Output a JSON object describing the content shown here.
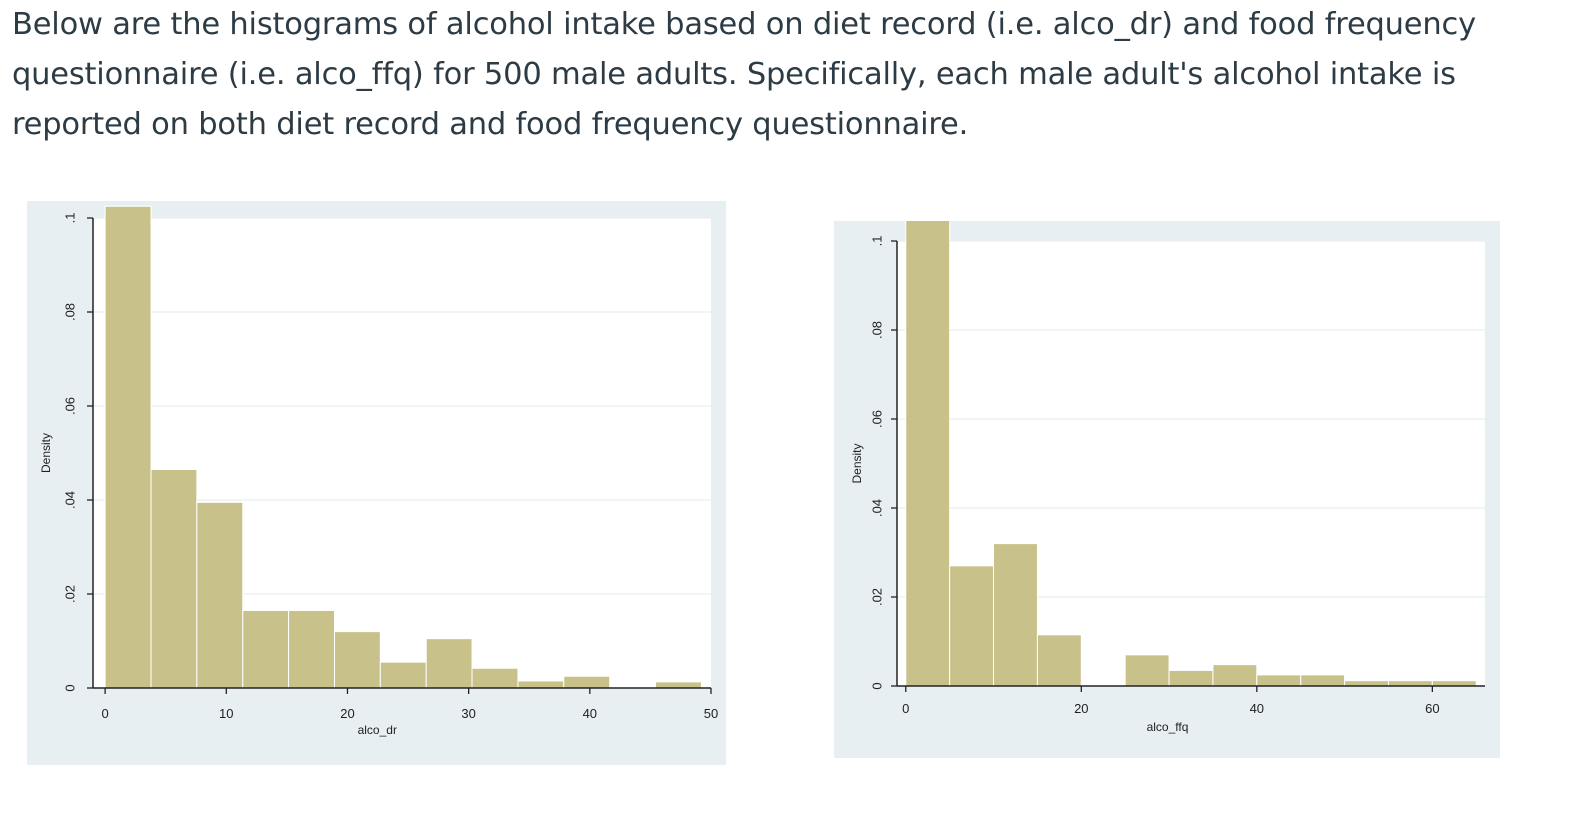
{
  "question": {
    "text": "Below are the histograms of alcohol intake based on diet record (i.e. alco_dr) and food frequency questionnaire (i.e. alco_ffq) for 500 male adults. Specifically, each male adult's alcohol intake is reported on both diet record and food frequency questionnaire."
  },
  "colors": {
    "bar_fill": "#c9c18a",
    "bar_edge": "#ffffff",
    "panel_bg": "#e8eff3",
    "plot_bg": "#ffffff",
    "grid": "#e9eef1",
    "axis": "#222222"
  },
  "chart_data": [
    {
      "type": "bar",
      "subtype": "histogram",
      "title": "",
      "xlabel": "alco_dr",
      "ylabel": "Density",
      "xlim": [
        -1,
        50
      ],
      "ylim": [
        0,
        0.1
      ],
      "xticks": [
        0,
        10,
        20,
        30,
        40,
        50
      ],
      "xtick_labels": [
        "0",
        "10",
        "20",
        "30",
        "40",
        "50"
      ],
      "yticks": [
        0,
        0.02,
        0.04,
        0.06,
        0.08,
        0.1
      ],
      "ytick_labels": [
        "0",
        ".02",
        ".04",
        ".06",
        ".08",
        ".1"
      ],
      "grid": true,
      "bins": [
        {
          "x0": 0.0,
          "x1": 3.79,
          "value": 0.1025
        },
        {
          "x0": 3.79,
          "x1": 7.57,
          "value": 0.0465
        },
        {
          "x0": 7.57,
          "x1": 11.36,
          "value": 0.0395
        },
        {
          "x0": 11.36,
          "x1": 15.14,
          "value": 0.0165
        },
        {
          "x0": 15.14,
          "x1": 18.93,
          "value": 0.0165
        },
        {
          "x0": 18.93,
          "x1": 22.71,
          "value": 0.012
        },
        {
          "x0": 22.71,
          "x1": 26.5,
          "value": 0.0055
        },
        {
          "x0": 26.5,
          "x1": 30.28,
          "value": 0.0105
        },
        {
          "x0": 30.28,
          "x1": 34.07,
          "value": 0.0042
        },
        {
          "x0": 34.07,
          "x1": 37.85,
          "value": 0.0015
        },
        {
          "x0": 37.85,
          "x1": 41.64,
          "value": 0.0025
        },
        {
          "x0": 41.64,
          "x1": 45.42,
          "value": 0.0
        },
        {
          "x0": 45.42,
          "x1": 49.21,
          "value": 0.0013
        }
      ]
    },
    {
      "type": "bar",
      "subtype": "histogram",
      "title": "",
      "xlabel": "alco_ffq",
      "ylabel": "Density",
      "xlim": [
        -1,
        66
      ],
      "ylim": [
        0,
        0.1
      ],
      "xticks": [
        0,
        20,
        40,
        60
      ],
      "xtick_labels": [
        "0",
        "20",
        "40",
        "60"
      ],
      "yticks": [
        0,
        0.02,
        0.04,
        0.06,
        0.08,
        0.1
      ],
      "ytick_labels": [
        "0",
        ".02",
        ".04",
        ".06",
        ".08",
        ".1"
      ],
      "grid": true,
      "bins": [
        {
          "x0": 0.0,
          "x1": 5.0,
          "value": 0.1065
        },
        {
          "x0": 5.0,
          "x1": 10.0,
          "value": 0.027
        },
        {
          "x0": 10.0,
          "x1": 15.0,
          "value": 0.032
        },
        {
          "x0": 15.0,
          "x1": 20.0,
          "value": 0.0115
        },
        {
          "x0": 20.0,
          "x1": 25.0,
          "value": 0.0
        },
        {
          "x0": 25.0,
          "x1": 30.0,
          "value": 0.007
        },
        {
          "x0": 30.0,
          "x1": 35.0,
          "value": 0.0035
        },
        {
          "x0": 35.0,
          "x1": 40.0,
          "value": 0.0048
        },
        {
          "x0": 40.0,
          "x1": 45.0,
          "value": 0.0025
        },
        {
          "x0": 45.0,
          "x1": 50.0,
          "value": 0.0025
        },
        {
          "x0": 50.0,
          "x1": 55.0,
          "value": 0.0012
        },
        {
          "x0": 55.0,
          "x1": 60.0,
          "value": 0.0012
        },
        {
          "x0": 60.0,
          "x1": 65.0,
          "value": 0.0012
        }
      ]
    }
  ]
}
